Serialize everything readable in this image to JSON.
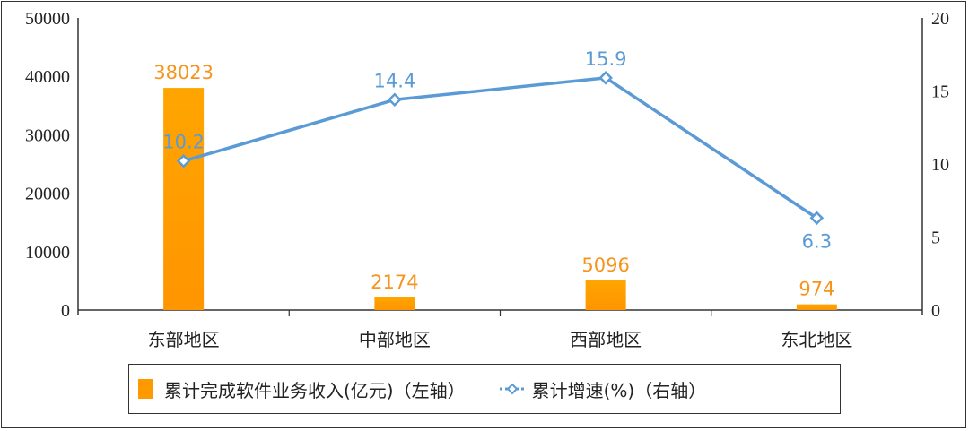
{
  "chart_data": {
    "type": "bar",
    "title": "",
    "categories": [
      "东部地区",
      "中部地区",
      "西部地区",
      "东北地区"
    ],
    "series": [
      {
        "name": "累计完成软件业务收入(亿元)（左轴）",
        "type": "bar",
        "axis": "left",
        "color": "#FF9900",
        "values": [
          38023,
          2174,
          5096,
          974
        ]
      },
      {
        "name": "累计增速(%)（右轴）",
        "type": "line",
        "axis": "right",
        "color": "#5B9BD5",
        "values": [
          10.2,
          14.4,
          15.9,
          6.3
        ]
      }
    ],
    "left_axis": {
      "ylim": [
        0,
        50000
      ],
      "ticks": [
        "0",
        "10000",
        "20000",
        "30000",
        "40000",
        "50000"
      ]
    },
    "right_axis": {
      "ylim": [
        0,
        20
      ],
      "ticks": [
        "0",
        "5",
        "10",
        "15",
        "20"
      ]
    },
    "xlabel": "",
    "ylabel": "",
    "grid": false,
    "legend_position": "bottom"
  },
  "legend": {
    "bar_label": "累计完成软件业务收入(亿元)（左轴）",
    "line_label": "累计增速(%)（右轴）"
  },
  "colors": {
    "bar": "#FF9900",
    "bar_label": "#F7941D",
    "line": "#5B9BD5",
    "line_label": "#5B9BD5",
    "axis": "#333333"
  }
}
